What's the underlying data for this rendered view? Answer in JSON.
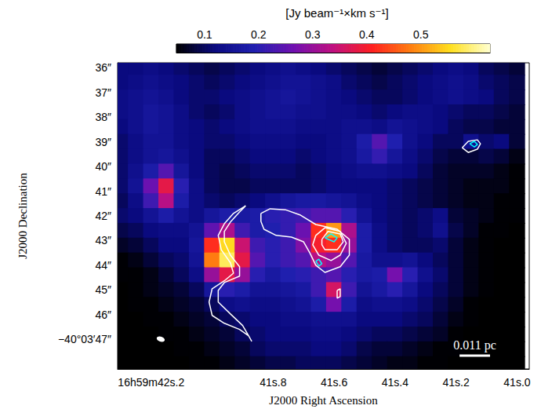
{
  "chart_data": {
    "type": "heatmap",
    "xlabel": "J2000 Right Ascension",
    "ylabel": "J2000 Declination",
    "xlim": [
      42.31,
      40.96
    ],
    "ylim": [
      48.2,
      35.8
    ],
    "xticks": [
      {
        "value": 42.2,
        "label": "16h59m42s.2"
      },
      {
        "value": 41.8,
        "label": "41s.8"
      },
      {
        "value": 41.6,
        "label": "41s.6"
      },
      {
        "value": 41.4,
        "label": "41s.4"
      },
      {
        "value": 41.2,
        "label": "41s.2"
      },
      {
        "value": 41.0,
        "label": "41s.0"
      }
    ],
    "yticks": [
      {
        "value": 36,
        "label": "36″"
      },
      {
        "value": 37,
        "label": "37″"
      },
      {
        "value": 38,
        "label": "38″"
      },
      {
        "value": 39,
        "label": "39″"
      },
      {
        "value": 40,
        "label": "40″"
      },
      {
        "value": 41,
        "label": "41″"
      },
      {
        "value": 42,
        "label": "42″"
      },
      {
        "value": 43,
        "label": "43″"
      },
      {
        "value": 44,
        "label": "44″"
      },
      {
        "value": 45,
        "label": "45″"
      },
      {
        "value": 46,
        "label": "46″"
      },
      {
        "value": 47,
        "label": "−40°03′47″"
      }
    ],
    "grid": false,
    "colorbar": {
      "title": "[Jy beam⁻¹×km s⁻¹]",
      "range": [
        0.048,
        0.628
      ],
      "ticks": [
        0.1,
        0.2,
        0.3,
        0.4,
        0.5
      ]
    },
    "heatmap": {
      "x": [
        42.3,
        42.25,
        42.2,
        42.15,
        42.1,
        42.05,
        42.0,
        41.95,
        41.9,
        41.85,
        41.8,
        41.75,
        41.7,
        41.65,
        41.6,
        41.55,
        41.5,
        41.45,
        41.4,
        41.35,
        41.3,
        41.25,
        41.2,
        41.15,
        41.1,
        41.05,
        41.0
      ],
      "y": [
        36,
        36.6,
        37.2,
        37.8,
        38.4,
        39,
        39.6,
        40.2,
        40.8,
        41.4,
        42,
        42.6,
        43.2,
        43.8,
        44.4,
        45,
        45.6,
        46.2,
        46.8,
        47.4,
        48
      ],
      "values": [
        [
          0.12,
          0.12,
          0.13,
          0.12,
          0.11,
          0.1,
          0.09,
          0.1,
          0.11,
          0.12,
          0.13,
          0.14,
          0.13,
          0.12,
          0.11,
          0.1,
          0.09,
          0.08,
          0.09,
          0.1,
          0.11,
          0.12,
          0.13,
          0.12,
          0.1,
          0.09,
          0.08
        ],
        [
          0.12,
          0.13,
          0.14,
          0.13,
          0.12,
          0.11,
          0.1,
          0.11,
          0.12,
          0.13,
          0.14,
          0.15,
          0.15,
          0.14,
          0.13,
          0.11,
          0.1,
          0.09,
          0.1,
          0.11,
          0.12,
          0.13,
          0.14,
          0.13,
          0.11,
          0.1,
          0.09
        ],
        [
          0.13,
          0.14,
          0.15,
          0.14,
          0.12,
          0.11,
          0.11,
          0.12,
          0.13,
          0.14,
          0.15,
          0.16,
          0.15,
          0.14,
          0.13,
          0.12,
          0.11,
          0.1,
          0.1,
          0.11,
          0.12,
          0.13,
          0.14,
          0.13,
          0.12,
          0.1,
          0.09
        ],
        [
          0.13,
          0.14,
          0.16,
          0.15,
          0.13,
          0.11,
          0.1,
          0.11,
          0.13,
          0.14,
          0.15,
          0.15,
          0.14,
          0.14,
          0.13,
          0.13,
          0.12,
          0.11,
          0.12,
          0.13,
          0.13,
          0.12,
          0.11,
          0.1,
          0.1,
          0.09,
          0.08
        ],
        [
          0.12,
          0.14,
          0.16,
          0.15,
          0.13,
          0.12,
          0.11,
          0.12,
          0.13,
          0.14,
          0.14,
          0.14,
          0.13,
          0.13,
          0.13,
          0.14,
          0.14,
          0.13,
          0.15,
          0.14,
          0.13,
          0.12,
          0.1,
          0.09,
          0.09,
          0.08,
          0.08
        ],
        [
          0.11,
          0.13,
          0.15,
          0.15,
          0.13,
          0.12,
          0.11,
          0.11,
          0.12,
          0.13,
          0.13,
          0.13,
          0.12,
          0.12,
          0.13,
          0.14,
          0.18,
          0.24,
          0.19,
          0.14,
          0.12,
          0.1,
          0.1,
          0.14,
          0.11,
          0.12,
          0.08
        ],
        [
          0.11,
          0.13,
          0.15,
          0.16,
          0.14,
          0.12,
          0.1,
          0.1,
          0.11,
          0.12,
          0.12,
          0.12,
          0.11,
          0.12,
          0.13,
          0.14,
          0.17,
          0.21,
          0.16,
          0.13,
          0.11,
          0.09,
          0.08,
          0.08,
          0.09,
          0.08,
          0.06
        ],
        [
          0.11,
          0.14,
          0.18,
          0.24,
          0.16,
          0.12,
          0.1,
          0.09,
          0.1,
          0.11,
          0.11,
          0.11,
          0.1,
          0.11,
          0.12,
          0.13,
          0.14,
          0.14,
          0.13,
          0.12,
          0.1,
          0.08,
          0.07,
          0.07,
          0.07,
          0.06,
          0.05
        ],
        [
          0.11,
          0.15,
          0.26,
          0.38,
          0.2,
          0.13,
          0.1,
          0.09,
          0.09,
          0.1,
          0.1,
          0.1,
          0.1,
          0.11,
          0.12,
          0.12,
          0.12,
          0.12,
          0.11,
          0.1,
          0.09,
          0.08,
          0.07,
          0.06,
          0.06,
          0.06,
          0.05
        ],
        [
          0.1,
          0.13,
          0.22,
          0.33,
          0.18,
          0.13,
          0.11,
          0.1,
          0.11,
          0.12,
          0.14,
          0.16,
          0.17,
          0.17,
          0.16,
          0.15,
          0.13,
          0.12,
          0.11,
          0.1,
          0.09,
          0.08,
          0.07,
          0.06,
          0.06,
          0.05,
          0.05
        ],
        [
          0.11,
          0.12,
          0.15,
          0.18,
          0.15,
          0.13,
          0.16,
          0.18,
          0.17,
          0.18,
          0.2,
          0.21,
          0.22,
          0.24,
          0.24,
          0.2,
          0.15,
          0.12,
          0.11,
          0.1,
          0.11,
          0.13,
          0.08,
          0.07,
          0.06,
          0.05,
          0.05
        ],
        [
          0.09,
          0.1,
          0.12,
          0.13,
          0.13,
          0.15,
          0.25,
          0.32,
          0.22,
          0.18,
          0.19,
          0.21,
          0.26,
          0.42,
          0.5,
          0.32,
          0.18,
          0.13,
          0.11,
          0.1,
          0.11,
          0.14,
          0.09,
          0.07,
          0.05,
          0.05,
          0.04
        ],
        [
          0.07,
          0.08,
          0.1,
          0.12,
          0.12,
          0.16,
          0.42,
          0.55,
          0.35,
          0.22,
          0.2,
          0.22,
          0.28,
          0.4,
          0.42,
          0.3,
          0.18,
          0.13,
          0.11,
          0.1,
          0.1,
          0.11,
          0.08,
          0.06,
          0.05,
          0.04,
          0.04
        ],
        [
          0.05,
          0.06,
          0.08,
          0.1,
          0.11,
          0.15,
          0.48,
          0.58,
          0.38,
          0.24,
          0.2,
          0.22,
          0.24,
          0.33,
          0.3,
          0.24,
          0.17,
          0.14,
          0.14,
          0.15,
          0.12,
          0.1,
          0.08,
          0.06,
          0.05,
          0.04,
          0.04
        ],
        [
          0.05,
          0.05,
          0.06,
          0.08,
          0.1,
          0.13,
          0.3,
          0.38,
          0.3,
          0.2,
          0.17,
          0.19,
          0.2,
          0.22,
          0.24,
          0.2,
          0.17,
          0.18,
          0.27,
          0.2,
          0.14,
          0.11,
          0.08,
          0.06,
          0.05,
          0.04,
          0.04
        ],
        [
          0.04,
          0.05,
          0.06,
          0.07,
          0.08,
          0.1,
          0.16,
          0.2,
          0.18,
          0.15,
          0.15,
          0.16,
          0.17,
          0.22,
          0.36,
          0.22,
          0.15,
          0.17,
          0.2,
          0.16,
          0.12,
          0.1,
          0.08,
          0.06,
          0.05,
          0.04,
          0.04
        ],
        [
          0.04,
          0.05,
          0.05,
          0.06,
          0.07,
          0.08,
          0.1,
          0.13,
          0.14,
          0.13,
          0.13,
          0.14,
          0.15,
          0.18,
          0.27,
          0.18,
          0.13,
          0.14,
          0.14,
          0.13,
          0.11,
          0.09,
          0.07,
          0.05,
          0.04,
          0.04,
          0.04
        ],
        [
          0.04,
          0.04,
          0.05,
          0.05,
          0.06,
          0.07,
          0.08,
          0.1,
          0.11,
          0.12,
          0.12,
          0.13,
          0.13,
          0.14,
          0.14,
          0.14,
          0.12,
          0.12,
          0.12,
          0.11,
          0.1,
          0.08,
          0.06,
          0.05,
          0.04,
          0.04,
          0.04
        ],
        [
          0.04,
          0.04,
          0.04,
          0.05,
          0.05,
          0.06,
          0.07,
          0.08,
          0.1,
          0.11,
          0.12,
          0.12,
          0.12,
          0.13,
          0.13,
          0.12,
          0.11,
          0.1,
          0.1,
          0.09,
          0.08,
          0.07,
          0.05,
          0.04,
          0.04,
          0.04,
          0.04
        ],
        [
          0.04,
          0.04,
          0.04,
          0.04,
          0.05,
          0.05,
          0.06,
          0.07,
          0.08,
          0.1,
          0.11,
          0.11,
          0.11,
          0.12,
          0.12,
          0.11,
          0.09,
          0.08,
          0.08,
          0.07,
          0.06,
          0.05,
          0.05,
          0.04,
          0.04,
          0.04,
          0.04
        ],
        [
          0.04,
          0.04,
          0.04,
          0.04,
          0.04,
          0.05,
          0.05,
          0.06,
          0.07,
          0.08,
          0.09,
          0.09,
          0.1,
          0.1,
          0.1,
          0.09,
          0.08,
          0.07,
          0.06,
          0.06,
          0.05,
          0.05,
          0.04,
          0.04,
          0.04,
          0.04,
          0.04
        ]
      ]
    },
    "contours": [
      {
        "color": "white",
        "points": [
          [
            41.89,
            41.59
          ],
          [
            41.93,
            41.9
          ],
          [
            41.96,
            42.32
          ],
          [
            41.98,
            42.79
          ],
          [
            41.97,
            43.37
          ],
          [
            41.94,
            43.9
          ],
          [
            41.93,
            44.32
          ],
          [
            41.96,
            44.63
          ],
          [
            42.0,
            44.95
          ],
          [
            42.01,
            45.49
          ],
          [
            42.0,
            46.03
          ],
          [
            41.96,
            46.35
          ],
          [
            41.91,
            46.6
          ],
          [
            41.88,
            46.86
          ],
          [
            41.87,
            47.08
          ],
          [
            41.88,
            46.86
          ],
          [
            41.9,
            46.44
          ],
          [
            41.94,
            45.97
          ],
          [
            41.98,
            45.49
          ],
          [
            41.98,
            45.02
          ],
          [
            41.96,
            44.7
          ],
          [
            41.91,
            44.44
          ],
          [
            41.91,
            44.06
          ],
          [
            41.94,
            43.59
          ],
          [
            41.96,
            43.05
          ],
          [
            41.96,
            42.63
          ],
          [
            41.94,
            42.25
          ],
          [
            41.91,
            41.84
          ],
          [
            41.89,
            41.59
          ]
        ]
      },
      {
        "color": "white",
        "points": [
          [
            41.84,
            41.9
          ],
          [
            41.81,
            41.71
          ],
          [
            41.76,
            41.75
          ],
          [
            41.71,
            41.97
          ],
          [
            41.66,
            42.35
          ],
          [
            41.59,
            42.54
          ],
          [
            41.55,
            42.95
          ],
          [
            41.55,
            43.59
          ],
          [
            41.58,
            44.06
          ],
          [
            41.63,
            44.29
          ],
          [
            41.66,
            44.0
          ],
          [
            41.68,
            43.49
          ],
          [
            41.7,
            43.05
          ],
          [
            41.74,
            42.86
          ],
          [
            41.79,
            42.79
          ],
          [
            41.83,
            42.54
          ],
          [
            41.84,
            42.22
          ],
          [
            41.84,
            41.9
          ]
        ]
      },
      {
        "color": "white",
        "points": [
          [
            41.66,
            42.79
          ],
          [
            41.63,
            42.48
          ],
          [
            41.58,
            42.63
          ],
          [
            41.56,
            43.11
          ],
          [
            41.58,
            43.59
          ],
          [
            41.61,
            43.81
          ],
          [
            41.65,
            43.59
          ],
          [
            41.67,
            43.17
          ],
          [
            41.66,
            42.79
          ]
        ]
      },
      {
        "color": "white",
        "points": [
          [
            41.64,
            42.95
          ],
          [
            41.62,
            42.63
          ],
          [
            41.58,
            42.73
          ],
          [
            41.57,
            43.05
          ],
          [
            41.59,
            43.37
          ],
          [
            41.63,
            43.37
          ],
          [
            41.64,
            43.17
          ],
          [
            41.64,
            42.95
          ]
        ]
      },
      {
        "color": "cyan",
        "points": [
          [
            41.63,
            42.89
          ],
          [
            41.61,
            42.73
          ],
          [
            41.59,
            42.89
          ],
          [
            41.6,
            43.05
          ],
          [
            41.63,
            42.89
          ]
        ]
      },
      {
        "color": "cyan",
        "points": [
          [
            41.66,
            43.84
          ],
          [
            41.65,
            43.75
          ],
          [
            41.64,
            43.94
          ],
          [
            41.65,
            44.03
          ],
          [
            41.66,
            43.84
          ]
        ]
      },
      {
        "color": "white",
        "points": [
          [
            41.59,
            45.02
          ],
          [
            41.58,
            44.95
          ],
          [
            41.58,
            45.27
          ],
          [
            41.59,
            45.33
          ],
          [
            41.59,
            45.02
          ]
        ]
      },
      {
        "color": "white",
        "points": [
          [
            41.18,
            39.24
          ],
          [
            41.16,
            38.98
          ],
          [
            41.13,
            38.92
          ],
          [
            41.12,
            39.08
          ],
          [
            41.13,
            39.3
          ],
          [
            41.16,
            39.43
          ],
          [
            41.18,
            39.24
          ]
        ]
      },
      {
        "color": "cyan",
        "points": [
          [
            41.155,
            39.08
          ],
          [
            41.14,
            38.98
          ],
          [
            41.13,
            39.11
          ],
          [
            41.14,
            39.21
          ],
          [
            41.155,
            39.08
          ]
        ]
      }
    ],
    "beam": {
      "major": 0.34,
      "minor": 0.2
    },
    "scale_bar": {
      "label": "0.011 pc",
      "length": 0.1
    }
  }
}
